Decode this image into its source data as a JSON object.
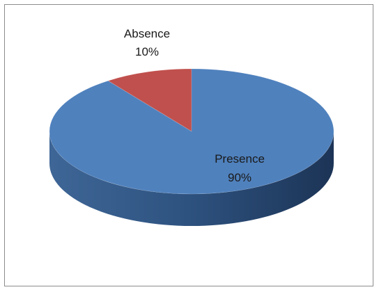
{
  "chart_data": {
    "type": "pie",
    "style": "3d",
    "slices": [
      {
        "label": "Presence",
        "value": 90,
        "value_label": "90%",
        "color": "#4f81bd"
      },
      {
        "label": "Absence",
        "value": 10,
        "value_label": "10%",
        "color": "#c0504d"
      }
    ],
    "legend": "none"
  }
}
